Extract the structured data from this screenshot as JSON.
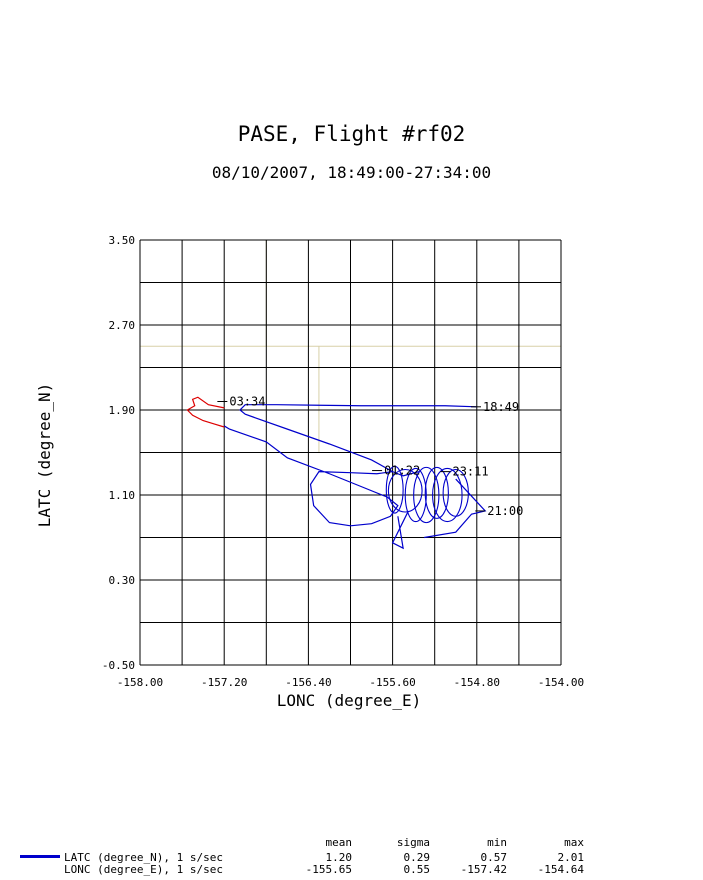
{
  "chart_data": {
    "type": "line",
    "title": "PASE, Flight #rf02",
    "subtitle": "08/10/2007, 18:49:00-27:34:00",
    "xlabel": "LONC (degree_E)",
    "ylabel": "LATC (degree_N)",
    "xlim": [
      -158.0,
      -154.0
    ],
    "ylim": [
      -0.5,
      3.5
    ],
    "xticks": [
      "-158.00",
      "-157.20",
      "-156.40",
      "-155.60",
      "-154.80",
      "-154.00"
    ],
    "yticks": [
      "3.50",
      "2.70",
      "1.90",
      "1.10",
      "0.30",
      "-0.50"
    ],
    "grid": true,
    "colors": {
      "track": "#0000cc",
      "track_end": "#dd0000",
      "region": "#d8d0a8",
      "grid": "#000000"
    },
    "region_lines": [
      {
        "x": [
          -158.0,
          -154.0
        ],
        "y": [
          2.5,
          2.5
        ]
      },
      {
        "x": [
          -158.0,
          -156.3
        ],
        "y": [
          1.5,
          1.5
        ]
      },
      {
        "x": [
          -156.3,
          -156.3
        ],
        "y": [
          1.5,
          2.5
        ]
      },
      {
        "x": [
          -156.8,
          -156.8
        ],
        "y": [
          2.5,
          3.5
        ]
      }
    ],
    "track": {
      "x": [
        -154.8,
        -155.1,
        -155.5,
        -155.9,
        -156.3,
        -156.7,
        -157.0,
        -157.05,
        -157.0,
        -156.6,
        -156.2,
        -155.8,
        -155.6,
        -155.5,
        -155.35
      ],
      "y": [
        1.93,
        1.94,
        1.94,
        1.94,
        1.945,
        1.95,
        1.95,
        1.9,
        1.86,
        1.72,
        1.58,
        1.43,
        1.32,
        1.28,
        1.32
      ]
    },
    "orbits": [
      {
        "cx": -155.38,
        "cy": 1.1,
        "rx": 0.1,
        "ry": 0.25
      },
      {
        "cx": -155.28,
        "cy": 1.1,
        "rx": 0.12,
        "ry": 0.26
      },
      {
        "cx": -155.18,
        "cy": 1.12,
        "rx": 0.11,
        "ry": 0.24
      },
      {
        "cx": -155.08,
        "cy": 1.1,
        "rx": 0.14,
        "ry": 0.25
      },
      {
        "cx": -155.0,
        "cy": 1.12,
        "rx": 0.12,
        "ry": 0.22
      },
      {
        "cx": -155.48,
        "cy": 1.14,
        "rx": 0.16,
        "ry": 0.2
      },
      {
        "cx": -155.58,
        "cy": 1.15,
        "rx": 0.08,
        "ry": 0.22
      }
    ],
    "track2": {
      "x": [
        -155.6,
        -155.75,
        -156.0,
        -156.3,
        -156.38,
        -156.35,
        -156.2,
        -156.0,
        -155.8,
        -155.62,
        -155.55,
        -155.65,
        -155.9,
        -156.2,
        -156.6,
        -156.8,
        -157.15,
        -157.2
      ],
      "y": [
        1.32,
        1.3,
        1.31,
        1.32,
        1.2,
        1.0,
        0.84,
        0.81,
        0.83,
        0.9,
        1.0,
        1.08,
        1.18,
        1.3,
        1.45,
        1.6,
        1.72,
        1.75
      ]
    },
    "return_leg": {
      "x": [
        -155.0,
        -154.72,
        -154.85,
        -155.0,
        -155.3
      ],
      "y": [
        1.25,
        0.95,
        0.92,
        0.75,
        0.7
      ]
    },
    "drop_leg": {
      "x": [
        -155.55,
        -155.5,
        -155.6,
        -155.45
      ],
      "y": [
        0.9,
        0.6,
        0.65,
        0.95
      ]
    },
    "red_track": {
      "x": [
        -157.2,
        -157.35,
        -157.45,
        -157.5,
        -157.48,
        -157.55,
        -157.5,
        -157.4,
        -157.3,
        -157.2
      ],
      "y": [
        1.92,
        1.95,
        2.02,
        2.0,
        1.94,
        1.9,
        1.85,
        1.8,
        1.77,
        1.74
      ]
    },
    "annotations": [
      {
        "text": "18:49",
        "x": -154.76,
        "y": 1.93
      },
      {
        "text": "03:34",
        "x": -157.17,
        "y": 1.98
      },
      {
        "text": "01:22",
        "x": -155.7,
        "y": 1.33
      },
      {
        "text": "23:11",
        "x": -155.05,
        "y": 1.32
      },
      {
        "text": "21:00",
        "x": -154.72,
        "y": 0.95
      }
    ]
  },
  "legend": {
    "headers": [
      "mean",
      "sigma",
      "min",
      "max"
    ],
    "rows": [
      {
        "label": "LATC (degree_N), 1 s/sec",
        "values": [
          "1.20",
          "0.29",
          "0.57",
          "2.01"
        ]
      },
      {
        "label": "LONC (degree_E), 1 s/sec",
        "values": [
          "-155.65",
          "0.55",
          "-157.42",
          "-154.64"
        ]
      }
    ]
  }
}
